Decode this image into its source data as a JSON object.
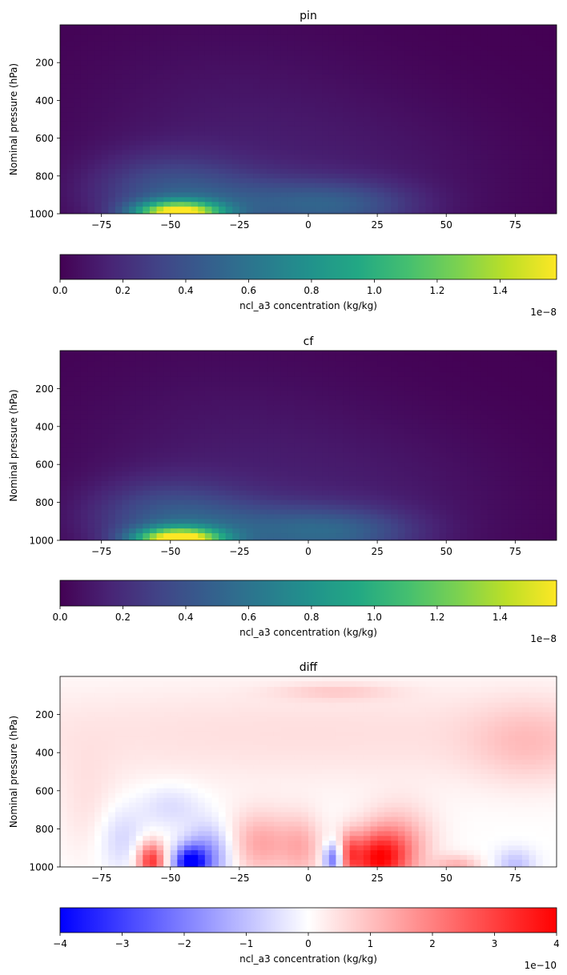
{
  "chart_data": [
    {
      "type": "heatmap",
      "title": "pin",
      "xlabel": "",
      "ylabel": "Nominal pressure (hPa)",
      "xlim": [
        -90,
        90
      ],
      "ylim": [
        1000,
        0
      ],
      "xticks": [
        -75,
        -50,
        -25,
        0,
        25,
        50,
        75
      ],
      "xtick_labels": [
        "−75",
        "−50",
        "−25",
        "0",
        "25",
        "50",
        "75"
      ],
      "yticks": [
        200,
        400,
        600,
        800,
        1000
      ],
      "ytick_labels": [
        "200",
        "400",
        "600",
        "800",
        "1000"
      ],
      "colormap": "viridis",
      "features": [
        {
          "lat": -47,
          "p": 1000,
          "sx": 11,
          "sy": 45,
          "amp": 1.45e-08
        },
        {
          "lat": -52,
          "p": 880,
          "sx": 20,
          "sy": 140,
          "amp": 3e-09
        },
        {
          "lat": -20,
          "p": 950,
          "sx": 25,
          "sy": 110,
          "amp": 2.2e-09
        },
        {
          "lat": 12,
          "p": 960,
          "sx": 20,
          "sy": 90,
          "amp": 3e-09
        },
        {
          "lat": -30,
          "p": 600,
          "sx": 40,
          "sy": 400,
          "amp": 1e-09
        },
        {
          "lat": 30,
          "p": 800,
          "sx": 35,
          "sy": 300,
          "amp": 7e-10
        }
      ],
      "colorbar": {
        "label": "ncl_a3 concentration (kg/kg)",
        "range": [
          0,
          1.58e-08
        ],
        "ticks": [
          0,
          0.2,
          0.4,
          0.6,
          0.8,
          1.0,
          1.2,
          1.4
        ],
        "tick_labels": [
          "0.0",
          "0.2",
          "0.4",
          "0.6",
          "0.8",
          "1.0",
          "1.2",
          "1.4"
        ],
        "offset_label": "1e−8"
      }
    },
    {
      "type": "heatmap",
      "title": "cf",
      "xlabel": "",
      "ylabel": "Nominal pressure (hPa)",
      "xlim": [
        -90,
        90
      ],
      "ylim": [
        1000,
        0
      ],
      "xticks": [
        -75,
        -50,
        -25,
        0,
        25,
        50,
        75
      ],
      "xtick_labels": [
        "−75",
        "−50",
        "−25",
        "0",
        "25",
        "50",
        "75"
      ],
      "yticks": [
        200,
        400,
        600,
        800,
        1000
      ],
      "ytick_labels": [
        "200",
        "400",
        "600",
        "800",
        "1000"
      ],
      "colormap": "viridis",
      "features": [
        {
          "lat": -47,
          "p": 1000,
          "sx": 11,
          "sy": 45,
          "amp": 1.5e-08
        },
        {
          "lat": -52,
          "p": 880,
          "sx": 20,
          "sy": 140,
          "amp": 3.2e-09
        },
        {
          "lat": -20,
          "p": 950,
          "sx": 25,
          "sy": 110,
          "amp": 2.5e-09
        },
        {
          "lat": 12,
          "p": 960,
          "sx": 20,
          "sy": 90,
          "amp": 3.2e-09
        },
        {
          "lat": -30,
          "p": 600,
          "sx": 40,
          "sy": 400,
          "amp": 1e-09
        },
        {
          "lat": 30,
          "p": 800,
          "sx": 35,
          "sy": 300,
          "amp": 8e-10
        }
      ],
      "colorbar": {
        "label": "ncl_a3 concentration (kg/kg)",
        "range": [
          0,
          1.58e-08
        ],
        "ticks": [
          0,
          0.2,
          0.4,
          0.6,
          0.8,
          1.0,
          1.2,
          1.4
        ],
        "tick_labels": [
          "0.0",
          "0.2",
          "0.4",
          "0.6",
          "0.8",
          "1.0",
          "1.2",
          "1.4"
        ],
        "offset_label": "1e−8"
      }
    },
    {
      "type": "heatmap",
      "title": "diff",
      "xlabel": "",
      "ylabel": "Nominal pressure (hPa)",
      "xlim": [
        -90,
        90
      ],
      "ylim": [
        1000,
        0
      ],
      "xticks": [
        -75,
        -50,
        -25,
        0,
        25,
        50,
        75
      ],
      "xtick_labels": [
        "−75",
        "−50",
        "−25",
        "0",
        "25",
        "50",
        "75"
      ],
      "yticks": [
        200,
        400,
        600,
        800,
        1000
      ],
      "ytick_labels": [
        "200",
        "400",
        "600",
        "800",
        "1000"
      ],
      "colormap": "bwr",
      "features": [
        {
          "lat": 0,
          "p": 300,
          "sx": 120,
          "sy": 200,
          "amp": 5e-11
        },
        {
          "lat": 80,
          "p": 350,
          "sx": 15,
          "sy": 150,
          "amp": 7e-11
        },
        {
          "lat": 10,
          "p": 80,
          "sx": 15,
          "sy": 30,
          "amp": 6e-11
        },
        {
          "lat": -57,
          "p": 970,
          "sx": 3.5,
          "sy": 70,
          "amp": 3.2e-10
        },
        {
          "lat": -43,
          "p": 980,
          "sx": 4,
          "sy": 60,
          "amp": -3.8e-10
        },
        {
          "lat": -36,
          "p": 940,
          "sx": 6,
          "sy": 110,
          "amp": -1.8e-10
        },
        {
          "lat": -50,
          "p": 680,
          "sx": 8,
          "sy": 80,
          "amp": -6e-11
        },
        {
          "lat": -68,
          "p": 850,
          "sx": 6,
          "sy": 120,
          "amp": -7e-11
        },
        {
          "lat": -17,
          "p": 880,
          "sx": 9,
          "sy": 120,
          "amp": 1.4e-10
        },
        {
          "lat": -2,
          "p": 900,
          "sx": 5,
          "sy": 120,
          "amp": 1e-10
        },
        {
          "lat": 9,
          "p": 960,
          "sx": 2.5,
          "sy": 60,
          "amp": -2.6e-10
        },
        {
          "lat": 15,
          "p": 930,
          "sx": 2.5,
          "sy": 80,
          "amp": 1.5e-10
        },
        {
          "lat": 25,
          "p": 960,
          "sx": 8,
          "sy": 100,
          "amp": 3.4e-10
        },
        {
          "lat": 33,
          "p": 860,
          "sx": 9,
          "sy": 130,
          "amp": 1.2e-10
        },
        {
          "lat": 54,
          "p": 995,
          "sx": 6,
          "sy": 40,
          "amp": 1.2e-10
        },
        {
          "lat": 75,
          "p": 990,
          "sx": 5,
          "sy": 60,
          "amp": -1e-10
        },
        {
          "lat": -80,
          "p": 700,
          "sx": 8,
          "sy": 200,
          "amp": 4e-11
        }
      ],
      "colorbar": {
        "label": "ncl_a3 concentration (kg/kg)",
        "range": [
          -4e-10,
          4e-10
        ],
        "ticks": [
          -4,
          -3,
          -2,
          -1,
          0,
          1,
          2,
          3,
          4
        ],
        "tick_labels": [
          "−4",
          "−3",
          "−2",
          "−1",
          "0",
          "1",
          "2",
          "3",
          "4"
        ],
        "offset_label": "1e−10"
      }
    }
  ]
}
